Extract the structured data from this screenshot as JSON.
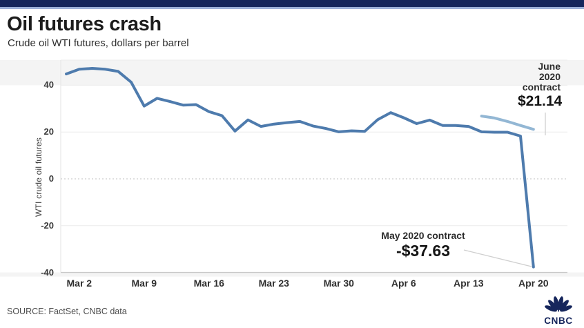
{
  "header": {
    "title": "Oil futures crash",
    "subtitle": "Crude oil WTI futures, dollars per barrel"
  },
  "footer": {
    "source": "SOURCE: FactSet, CNBC data",
    "logo_text": "CNBC"
  },
  "colors": {
    "navy": "#16265c",
    "topbar_strip": "#9cb0d8",
    "may_line": "#4e7bad",
    "june_line": "#93b7d4",
    "grid": "#ececec",
    "zero_grid": "#c2c2c2",
    "axis_line": "#c9c9c9",
    "leader": "#cfcfcf",
    "outer_band": "#f4f4f4"
  },
  "chart_data": {
    "type": "line",
    "title": "Oil futures crash",
    "subtitle": "Crude oil WTI futures, dollars per barrel",
    "ylabel": "WTI crude oil futures",
    "ylim": [
      -42,
      51
    ],
    "yticks": [
      40,
      20,
      0,
      -20,
      -40
    ],
    "grid": "horizontal gridlines; zero line dotted",
    "legend_position": "inline annotations on lines",
    "x_axis": {
      "tick_labels": [
        "Mar 2",
        "Mar 9",
        "Mar 16",
        "Mar 23",
        "Mar 30",
        "Apr 6",
        "Apr 13",
        "Apr 20"
      ],
      "tick_day_indices": [
        1,
        6,
        11,
        16,
        21,
        26,
        31,
        36
      ]
    },
    "series": [
      {
        "name": "May 2020 contract",
        "color": "#4e7bad",
        "start_day": 0,
        "dates": [
          "Feb 28",
          "Mar 2",
          "Mar 3",
          "Mar 4",
          "Mar 5",
          "Mar 6",
          "Mar 9",
          "Mar 10",
          "Mar 11",
          "Mar 12",
          "Mar 13",
          "Mar 16",
          "Mar 17",
          "Mar 18",
          "Mar 19",
          "Mar 20",
          "Mar 23",
          "Mar 24",
          "Mar 25",
          "Mar 26",
          "Mar 27",
          "Mar 30",
          "Mar 31",
          "Apr 1",
          "Apr 2",
          "Apr 3",
          "Apr 6",
          "Apr 7",
          "Apr 8",
          "Apr 9",
          "Apr 10",
          "Apr 13",
          "Apr 14",
          "Apr 15",
          "Apr 16",
          "Apr 17",
          "Apr 20"
        ],
        "values": [
          44.8,
          46.8,
          47.2,
          46.8,
          45.9,
          41.3,
          31.1,
          34.4,
          33.0,
          31.5,
          31.7,
          28.7,
          27.0,
          20.4,
          25.2,
          22.4,
          23.4,
          24.0,
          24.5,
          22.6,
          21.5,
          20.1,
          20.5,
          20.3,
          25.3,
          28.3,
          26.1,
          23.6,
          25.1,
          22.8,
          22.8,
          22.4,
          20.1,
          19.9,
          19.9,
          18.3,
          -37.63
        ]
      },
      {
        "name": "June 2020 contract",
        "color": "#93b7d4",
        "start_day": 32,
        "dates": [
          "Apr 14",
          "Apr 15",
          "Apr 16",
          "Apr 17",
          "Apr 20"
        ],
        "values": [
          26.8,
          26.0,
          24.5,
          22.8,
          21.14
        ]
      }
    ],
    "annotations": [
      {
        "series": "June 2020 contract",
        "label": "June 2020 contract",
        "value": "$21.14"
      },
      {
        "series": "May 2020 contract",
        "label": "May 2020 contract",
        "value": "-$37.63"
      }
    ]
  }
}
